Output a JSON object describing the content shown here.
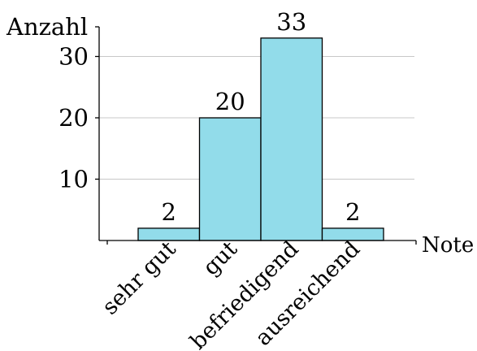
{
  "chart_data": {
    "type": "bar",
    "title": "",
    "xlabel": "Note",
    "ylabel": "Anzahl",
    "categories": [
      "sehr gut",
      "gut",
      "befriedigend",
      "ausreichend"
    ],
    "values": [
      2,
      20,
      33,
      2
    ],
    "data_labels": [
      "2",
      "20",
      "33",
      "2"
    ],
    "yticks": [
      10,
      20,
      30
    ],
    "ylim": [
      0,
      33
    ],
    "grid": true,
    "bar_color": "#92dcea",
    "bar_edge_color": "#000000",
    "grid_color": "#c8c8c8"
  }
}
